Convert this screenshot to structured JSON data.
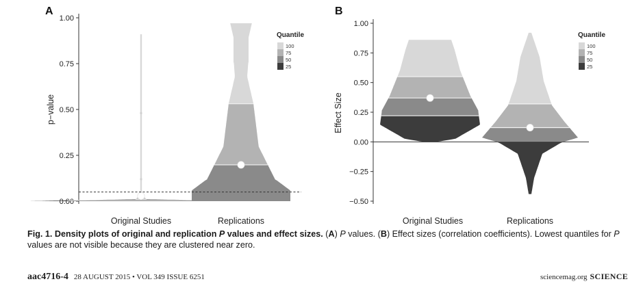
{
  "chart_data": [
    {
      "type": "violin",
      "panel_label": "A",
      "ylabel": "p−value",
      "ylim": [
        0,
        1
      ],
      "yticks": [
        "0.00",
        "0.25",
        "0.50",
        "0.75",
        "1.00"
      ],
      "categories": [
        "Original Studies",
        "Replications"
      ],
      "reference_line": 0.05,
      "legend": {
        "title": "Quantile",
        "entries": [
          "100",
          "75",
          "50",
          "25"
        ],
        "colors": [
          "#d8d8d8",
          "#b3b3b3",
          "#8a8a8a",
          "#3c3c3c"
        ],
        "placement": "top-right"
      },
      "series": [
        {
          "category": "Original Studies",
          "max": 0.91,
          "quantiles": [
            0.0,
            0.004,
            0.011,
            0.023,
            0.91
          ],
          "mean": 0.028
        },
        {
          "category": "Replications",
          "max": 0.97,
          "quantiles": [
            0.0,
            0.0,
            0.198,
            0.531,
            0.97
          ],
          "mean": 0.198
        }
      ]
    },
    {
      "type": "violin",
      "panel_label": "B",
      "ylabel": "Effect Size",
      "ylim": [
        -0.5,
        1
      ],
      "yticks": [
        "−0.50",
        "−0.25",
        "0.00",
        "0.25",
        "0.50",
        "0.75",
        "1.00"
      ],
      "categories": [
        "Original Studies",
        "Replications"
      ],
      "reference_line": 0,
      "legend": {
        "title": "Quantile",
        "entries": [
          "100",
          "75",
          "50",
          "25"
        ],
        "colors": [
          "#d8d8d8",
          "#b3b3b3",
          "#8a8a8a",
          "#3c3c3c"
        ],
        "placement": "top-right"
      },
      "series": [
        {
          "category": "Original Studies",
          "min": 0.0,
          "max": 0.86,
          "quantiles": [
            0.0,
            0.22,
            0.37,
            0.55,
            0.86
          ],
          "mean": 0.37
        },
        {
          "category": "Replications",
          "min": -0.44,
          "max": 0.92,
          "quantiles": [
            -0.44,
            0.0,
            0.12,
            0.32,
            0.92
          ],
          "mean": 0.12
        }
      ]
    }
  ],
  "caption": {
    "label": "Fig. 1.",
    "title": " Density plots of original and replication ",
    "title_p": "P",
    "title_rest": " values and effect sizes.",
    "body_a": " (",
    "body_a_label": "A",
    "body_a_close": ") ",
    "body_p": "P",
    "body_a_rest": " values. (",
    "body_b_label": "B",
    "body_b_rest": ") Effect sizes (correlation coefficients). Lowest quantiles for ",
    "body_p2": "P",
    "body_end": " values are not visible because they are clustered near zero."
  },
  "footer": {
    "journal_id": "aac4716-4",
    "issue": "28 AUGUST 2015 • VOL 349 ISSUE 6251",
    "site": "sciencemag.org",
    "brand": "SCIENCE"
  }
}
